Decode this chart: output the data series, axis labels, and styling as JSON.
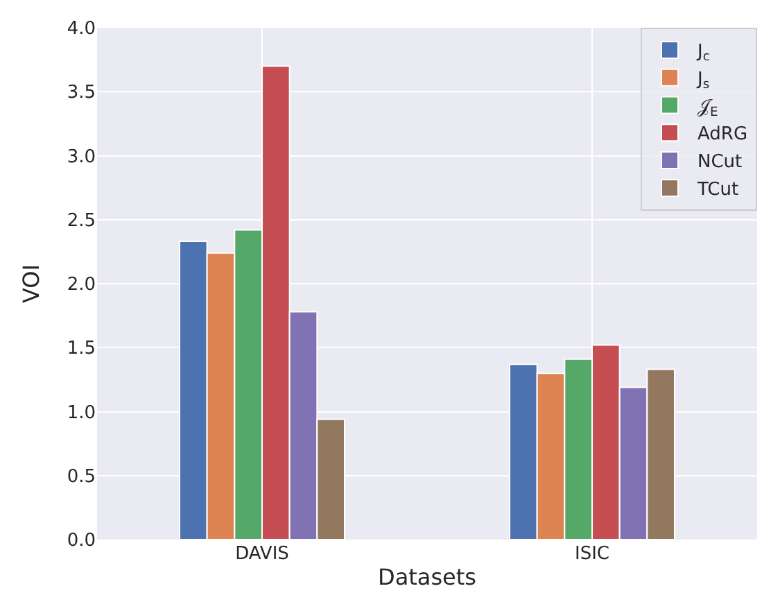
{
  "chart_data": {
    "type": "bar",
    "xlabel": "Datasets",
    "ylabel": "VOI",
    "categories": [
      "DAVIS",
      "ISIC"
    ],
    "series": [
      {
        "name": "J$_{c}$",
        "color": "#4c72b0",
        "values": [
          2.33,
          1.37
        ]
      },
      {
        "name": "J$_{s}$",
        "color": "#dd8452",
        "values": [
          2.24,
          1.3
        ]
      },
      {
        "name": "𝒥$_{E}$",
        "color": "#55a868",
        "values": [
          2.42,
          1.41
        ]
      },
      {
        "name": "AdRG",
        "color": "#c44e52",
        "values": [
          3.7,
          1.52
        ]
      },
      {
        "name": "NCut",
        "color": "#8172b3",
        "values": [
          1.78,
          1.19
        ]
      },
      {
        "name": "TCut",
        "color": "#937860",
        "values": [
          0.94,
          1.33
        ]
      }
    ],
    "ylim": [
      0,
      4
    ],
    "yticks": [
      {
        "value": 0,
        "label": "0.0"
      },
      0.5,
      {
        "value": 1,
        "label": "1.0"
      },
      1.5,
      {
        "value": 2,
        "label": "2.0"
      },
      2.5,
      {
        "value": 3,
        "label": "3.0"
      },
      3.5,
      {
        "value": 4,
        "label": "4.0"
      }
    ],
    "grid": true,
    "legend": "top right"
  }
}
